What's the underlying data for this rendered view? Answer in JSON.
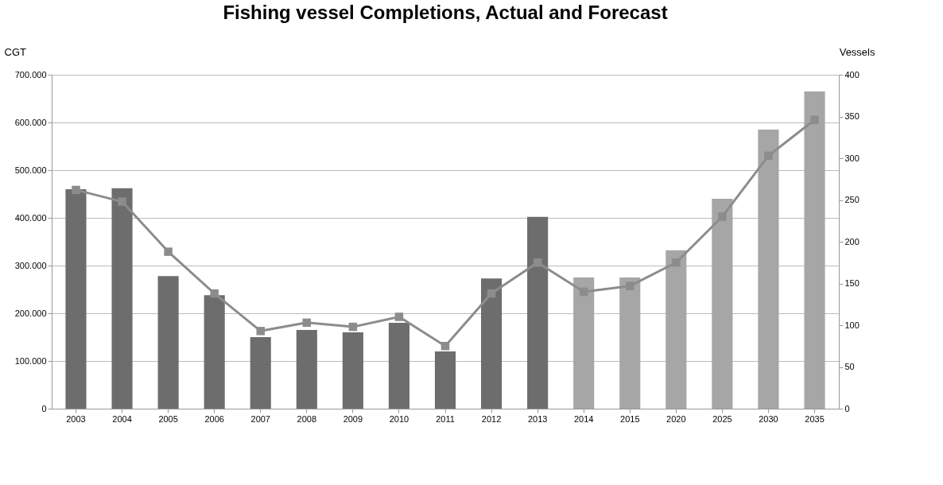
{
  "chart_data": {
    "type": "bar",
    "title": "Fishing vessel Completions, Actual and Forecast",
    "ylabel": "CGT",
    "y2label": "Vessels",
    "categories": [
      "2003",
      "2004",
      "2005",
      "2006",
      "2007",
      "2008",
      "2009",
      "2010",
      "2011",
      "2012",
      "2013",
      "2014",
      "2015",
      "2020",
      "2025",
      "2030",
      "2035"
    ],
    "series": [
      {
        "colors": [
          "#6d6d6d",
          "#6d6d6d",
          "#6d6d6d",
          "#6d6d6d",
          "#6d6d6d",
          "#6d6d6d",
          "#6d6d6d",
          "#6d6d6d",
          "#6d6d6d",
          "#6d6d6d",
          "#6d6d6d",
          "#a6a6a6",
          "#a6a6a6",
          "#a6a6a6",
          "#a6a6a6",
          "#a6a6a6",
          "#a6a6a6"
        ],
        "values": [
          460000,
          462000,
          278000,
          238000,
          150000,
          165000,
          160000,
          180000,
          120000,
          273000,
          402000,
          275000,
          275000,
          332000,
          440000,
          585000,
          665000
        ]
      },
      {
        "type": "line",
        "axis": "y2",
        "color": "#8c8c8c",
        "marker": "square",
        "values": [
          262,
          248,
          188,
          138,
          93,
          103,
          98,
          110,
          75,
          138,
          175,
          140,
          147,
          175,
          230,
          303,
          346
        ]
      }
    ],
    "ylim": [
      0,
      700000
    ],
    "yticks": [
      0,
      {
        "value": 100000,
        "label": "100.000"
      },
      {
        "value": 200000,
        "label": "200.000"
      },
      {
        "value": 300000,
        "label": "300.000"
      },
      {
        "value": 400000,
        "label": "400.000"
      },
      {
        "value": 500000,
        "label": "500.000"
      },
      {
        "value": 600000,
        "label": "600.000"
      },
      {
        "value": 700000,
        "label": "700.000"
      }
    ],
    "y2lim": [
      0,
      400
    ],
    "y2ticks": [
      0,
      50,
      100,
      150,
      200,
      250,
      300,
      350,
      400
    ],
    "grid": "y"
  }
}
